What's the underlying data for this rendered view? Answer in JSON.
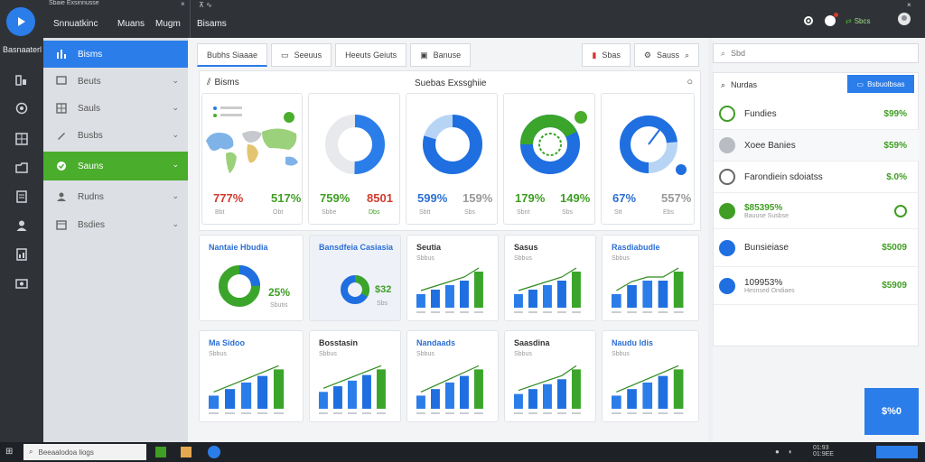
{
  "window": {
    "tab_title": "Sbaie Exsinnusse"
  },
  "rail": {
    "app_name": "Basnaaterl"
  },
  "topbar": {
    "menu": [
      "Snnuatkinc",
      "Muans",
      "Mugm"
    ],
    "breadcrumb": "Bisams",
    "status": "Sbcs",
    "colors": {
      "bg": "#2f3338",
      "accent": "#2b7de9"
    }
  },
  "sidenav": {
    "items": [
      {
        "label": "Bisms",
        "icon": "bar-chart-icon"
      },
      {
        "label": "Beuts",
        "icon": "chat-icon"
      },
      {
        "label": "Sauls",
        "icon": "grid-icon"
      },
      {
        "label": "Busbs",
        "icon": "pencil-icon"
      },
      {
        "label": "Sauns",
        "icon": "check-icon"
      },
      {
        "label": "Rudns",
        "icon": "users-icon"
      },
      {
        "label": "Bsdies",
        "icon": "calendar-icon"
      }
    ]
  },
  "content": {
    "tabs": [
      "Bubhs Siaaae",
      "Seeuus",
      "Heeuts Geiuts",
      "Banuse"
    ],
    "tabs_right": [
      "Sbas",
      "Sauss"
    ],
    "panel": {
      "title": "Bisms",
      "heading": "Suebas Exssghiie"
    },
    "top_cards": [
      {
        "v1": "777%",
        "v2": "517%",
        "s1": "Bbt",
        "s2": "Obt"
      },
      {
        "v1": "759%",
        "v2": "8501",
        "s1": "Sbbe",
        "s2": "Dbs"
      },
      {
        "v1": "599%",
        "v2": "159%",
        "s1": "Sbtt",
        "s2": "Sbs"
      },
      {
        "v1": "179%",
        "v2": "149%",
        "s1": "Sbnt",
        "s2": "Sbs"
      },
      {
        "v1": "67%",
        "v2": "557%",
        "s1": "Stt",
        "s2": "Ebs"
      }
    ],
    "mid_cards": [
      {
        "title": "Nantaie Hbudia",
        "value": "25%",
        "sub": "Sbutis"
      },
      {
        "title": "Bansdfeia Casiasia",
        "value": "$32",
        "sub": "Sbs"
      },
      {
        "title": "Seutia",
        "sub": "Sbbus"
      },
      {
        "title": "Sasus",
        "sub": "Sbbus"
      },
      {
        "title": "Rasdiabudle",
        "sub": "Sbbus"
      }
    ],
    "bottom_cards": [
      {
        "title": "Ma Sidoo",
        "sub": "Sbbus"
      },
      {
        "title": "Bosstasin",
        "sub": "Sbbus"
      },
      {
        "title": "Nandaads",
        "sub": "Sbbus"
      },
      {
        "title": "Saasdina",
        "sub": "Sbbus"
      },
      {
        "title": "Naudu ldis",
        "sub": "Sbbus"
      }
    ],
    "chart_data": [
      {
        "type": "bar",
        "values": [
          3,
          4,
          5,
          6,
          8
        ]
      },
      {
        "type": "bar",
        "values": [
          3,
          4,
          5,
          6,
          8
        ]
      },
      {
        "type": "bar",
        "values": [
          3,
          5,
          6,
          6,
          8
        ]
      },
      {
        "type": "bar",
        "values": [
          2,
          3,
          4,
          5,
          6
        ]
      },
      {
        "type": "bar",
        "values": [
          3,
          4,
          5,
          6,
          7
        ]
      },
      {
        "type": "bar",
        "values": [
          2,
          3,
          4,
          5,
          6
        ]
      },
      {
        "type": "bar",
        "values": [
          3,
          4,
          5,
          6,
          8
        ]
      },
      {
        "type": "bar",
        "values": [
          2,
          3,
          4,
          5,
          6
        ]
      }
    ]
  },
  "rpanel": {
    "search": "Sbd",
    "card_title": "Nurdas",
    "button": "Bsbuolbsas",
    "rows": [
      {
        "label": "Fundies",
        "value": "$99%",
        "icon": "leaf-icon",
        "color": "#3f9e23"
      },
      {
        "label": "Xoee Banies",
        "value": "$59%",
        "icon": "shield-icon",
        "color": "#8a8f96"
      },
      {
        "label": "Farondiein sdoiatss",
        "value": "$.0%",
        "icon": "clock-icon",
        "color": "#555"
      },
      {
        "label": "$85395%",
        "sub": "Bauuse Susbse",
        "value": "",
        "icon": "dollar-icon",
        "color": "#3f9e23"
      },
      {
        "label": "Bunsieiase",
        "value": "$5009",
        "icon": "globe-icon",
        "color": "#2b6fd3"
      },
      {
        "label": "109953%",
        "sub": "Hesnsed Ondiaes",
        "value": "$5909",
        "icon": "globe-icon",
        "color": "#2b6fd3"
      }
    ],
    "promo": "$%0"
  },
  "taskbar": {
    "search": "Beeaalodoa liogs",
    "clock1": "01:93",
    "clock2": "01:9EE"
  }
}
